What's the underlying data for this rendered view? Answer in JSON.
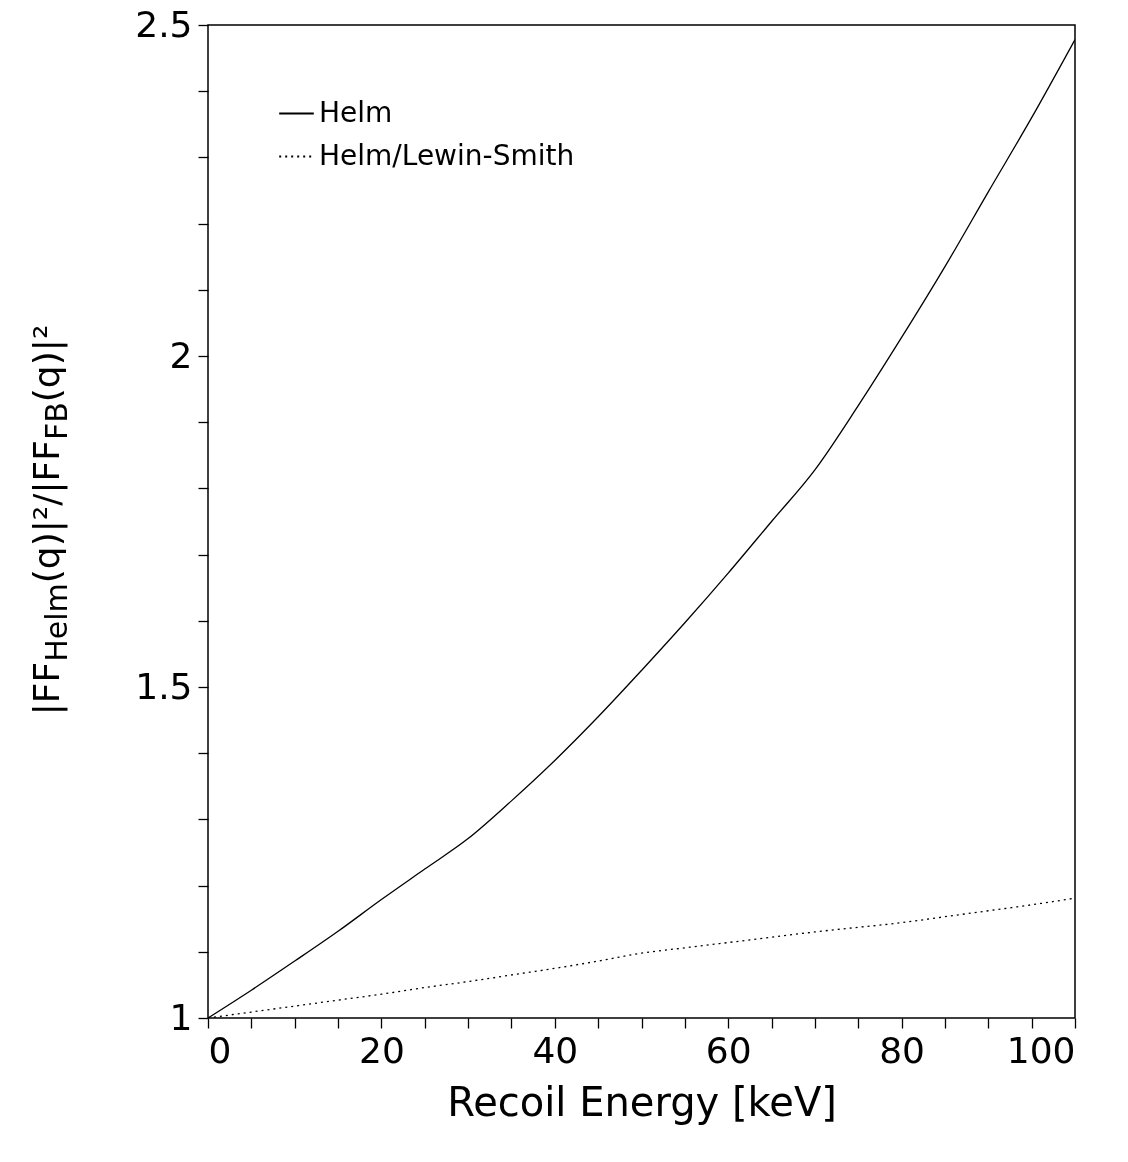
{
  "chart_data": {
    "type": "line",
    "xlabel": "Recoil Energy [keV]",
    "ylabel": "|FF$_{Helm}$(q)|²/|FF$_{FB}$(q)|²",
    "xlim": [
      0,
      100
    ],
    "ylim": [
      1,
      2.5
    ],
    "xticks": [
      0,
      {
        "value": 5,
        "label": null
      },
      {
        "value": 10,
        "label": null
      },
      {
        "value": 15,
        "label": null
      },
      20,
      {
        "value": 25,
        "label": null
      },
      {
        "value": 30,
        "label": null
      },
      {
        "value": 35,
        "label": null
      },
      40,
      {
        "value": 45,
        "label": null
      },
      {
        "value": 50,
        "label": null
      },
      {
        "value": 55,
        "label": null
      },
      60,
      {
        "value": 65,
        "label": null
      },
      {
        "value": 70,
        "label": null
      },
      {
        "value": 75,
        "label": null
      },
      80,
      {
        "value": 85,
        "label": null
      },
      {
        "value": 90,
        "label": null
      },
      {
        "value": 95,
        "label": null
      },
      100
    ],
    "yticks": [
      1,
      {
        "value": 1.1,
        "label": null
      },
      {
        "value": 1.2,
        "label": null
      },
      {
        "value": 1.3,
        "label": null
      },
      {
        "value": 1.4,
        "label": null
      },
      1.5,
      {
        "value": 1.6,
        "label": null
      },
      {
        "value": 1.7,
        "label": null
      },
      {
        "value": 1.8,
        "label": null
      },
      {
        "value": 1.9,
        "label": null
      },
      2,
      {
        "value": 2.1,
        "label": null
      },
      {
        "value": 2.2,
        "label": null
      },
      {
        "value": 2.3,
        "label": null
      },
      {
        "value": 2.4,
        "label": null
      },
      2.5
    ],
    "x": [
      0,
      5,
      10,
      15,
      20,
      25,
      30,
      35,
      40,
      45,
      50,
      55,
      60,
      65,
      70,
      75,
      80,
      85,
      90,
      95,
      100
    ],
    "legend": "top left",
    "grid": false,
    "series": [
      {
        "name": "Helm",
        "color": "#000000",
        "line_style": "solid",
        "values": [
          1,
          1.042,
          1.086,
          1.131,
          1.179,
          1.225,
          1.271,
          1.328,
          1.389,
          1.455,
          1.525,
          1.597,
          1.672,
          1.75,
          1.828,
          1.925,
          2.028,
          2.135,
          2.248,
          2.36,
          2.478
        ]
      },
      {
        "name": "Helm/Lewin-Smith",
        "color": "#000000",
        "line_style": "dotted",
        "values": [
          1,
          1.009,
          1.018,
          1.027,
          1.036,
          1.046,
          1.055,
          1.065,
          1.075,
          1.086,
          1.098,
          1.106,
          1.114,
          1.122,
          1.13,
          1.137,
          1.144,
          1.153,
          1.162,
          1.171,
          1.181
        ]
      }
    ]
  }
}
